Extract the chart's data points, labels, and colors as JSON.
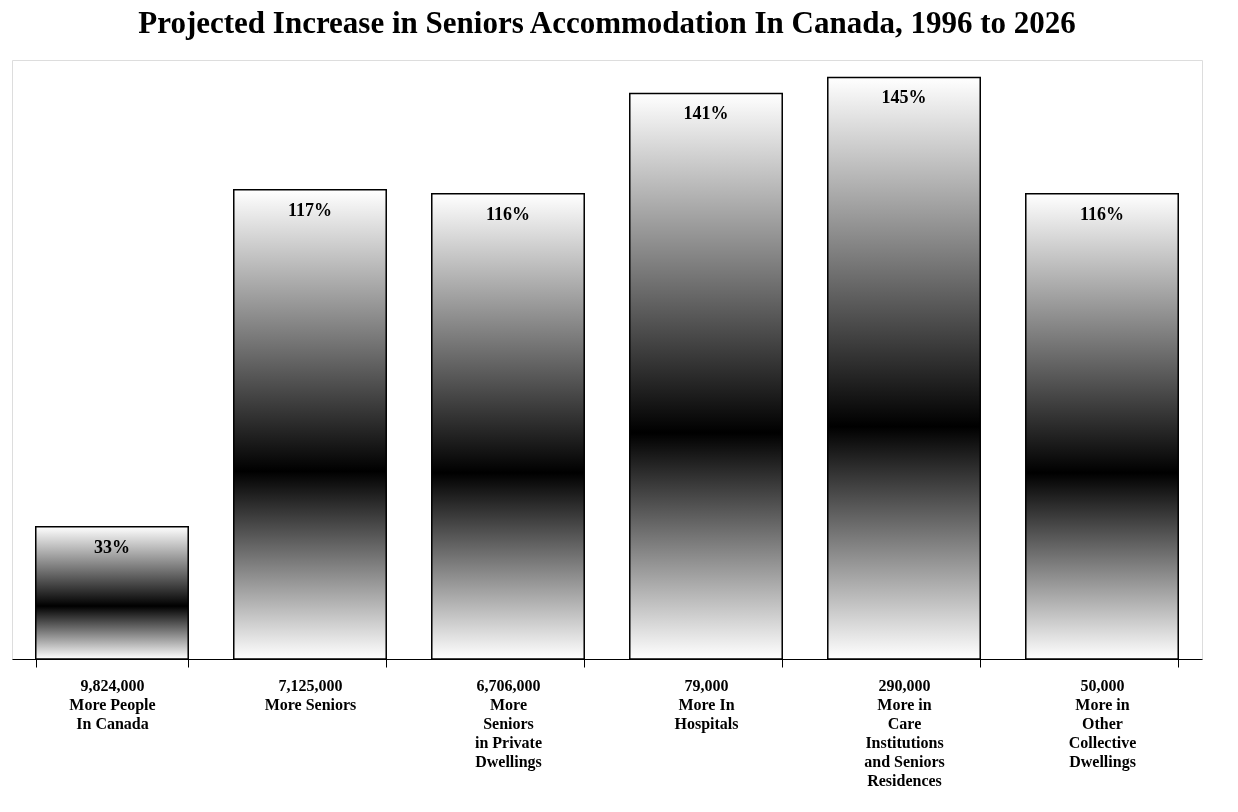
{
  "chart_data": {
    "type": "bar",
    "title": "Projected Increase in Seniors Accommodation In Canada, 1996 to 2026",
    "categories": [
      "9,824,000\nMore People\nIn Canada",
      "7,125,000\nMore Seniors",
      "6,706,000\nMore\nSeniors\nin Private\nDwellings",
      "79,000\nMore In\nHospitals",
      "290,000\nMore in\nCare\nInstitutions\nand Seniors\nResidences",
      "50,000\nMore in\nOther\nCollective\nDwellings"
    ],
    "values": [
      33,
      117,
      116,
      141,
      145,
      116
    ],
    "value_labels": [
      "33%",
      "117%",
      "116%",
      "141%",
      "145%",
      "116%"
    ],
    "color": "#000000",
    "tick_labels": "x",
    "grid": false
  }
}
